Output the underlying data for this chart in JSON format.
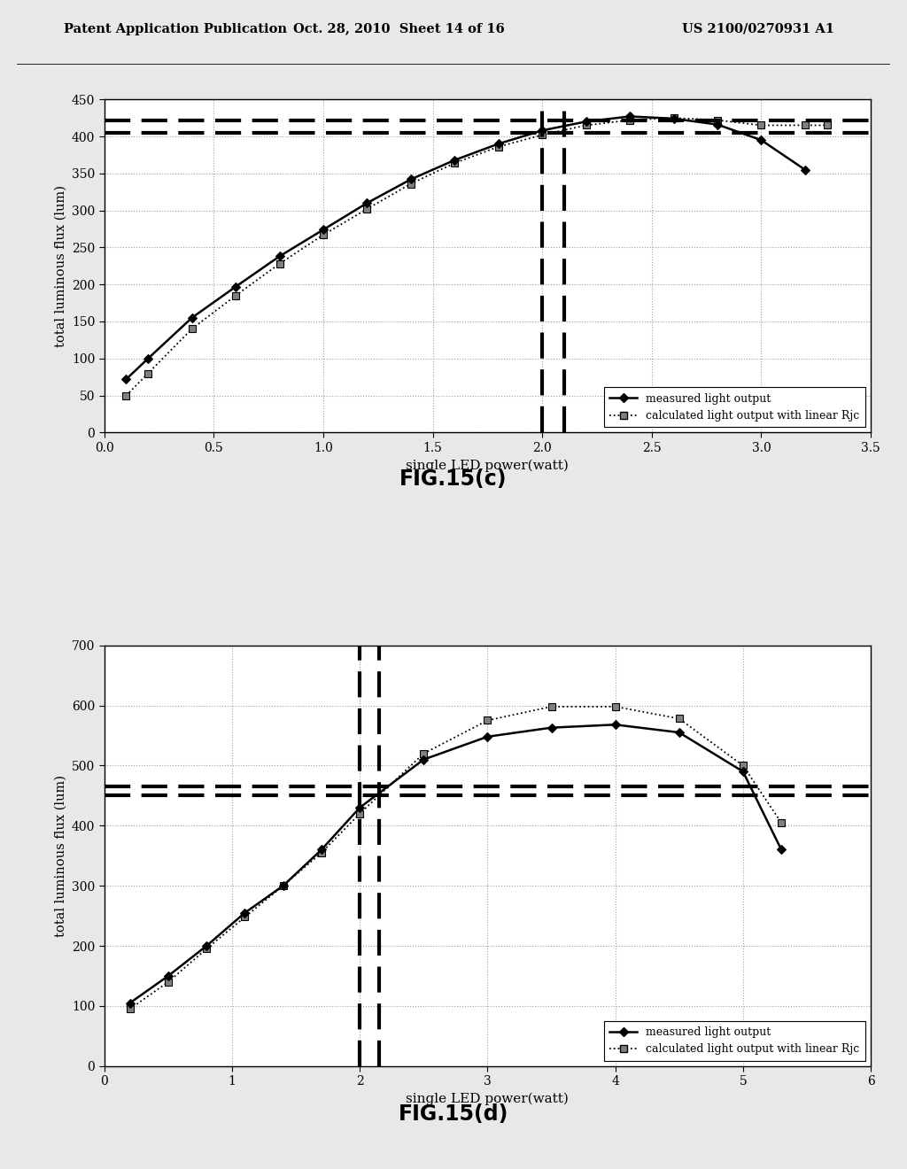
{
  "chart_c": {
    "title": "FIG.15(c)",
    "xlabel": "single LED power(watt)",
    "ylabel": "total luminous flux (lum)",
    "xlim": [
      0,
      3.5
    ],
    "ylim": [
      0,
      450
    ],
    "xticks": [
      0,
      0.5,
      1.0,
      1.5,
      2.0,
      2.5,
      3.0,
      3.5
    ],
    "yticks": [
      0,
      50,
      100,
      150,
      200,
      250,
      300,
      350,
      400,
      450
    ],
    "measured_x": [
      0.1,
      0.2,
      0.4,
      0.6,
      0.8,
      1.0,
      1.2,
      1.4,
      1.6,
      1.8,
      2.0,
      2.2,
      2.4,
      2.6,
      2.8,
      3.0,
      3.2
    ],
    "measured_y": [
      72,
      100,
      155,
      197,
      238,
      274,
      310,
      342,
      368,
      390,
      408,
      420,
      427,
      424,
      416,
      395,
      355
    ],
    "calc_x": [
      0.1,
      0.2,
      0.4,
      0.6,
      0.8,
      1.0,
      1.2,
      1.4,
      1.6,
      1.8,
      2.0,
      2.2,
      2.4,
      2.6,
      2.8,
      3.0,
      3.2,
      3.3
    ],
    "calc_y": [
      50,
      80,
      140,
      185,
      228,
      267,
      302,
      336,
      364,
      386,
      402,
      415,
      422,
      425,
      422,
      415,
      415,
      415
    ],
    "hline1_y": 422,
    "hline2_y": 405,
    "vline1_x": 2.0,
    "vline2_x": 2.1,
    "legend_measured": "measured light output",
    "legend_calc": "calculated light output with linear Rjc"
  },
  "chart_d": {
    "title": "FIG.15(d)",
    "xlabel": "single LED power(watt)",
    "ylabel": "total luminous flux (lum)",
    "xlim": [
      0,
      6
    ],
    "ylim": [
      0,
      700
    ],
    "xticks": [
      0,
      1,
      2,
      3,
      4,
      5,
      6
    ],
    "yticks": [
      0,
      100,
      200,
      300,
      400,
      500,
      600,
      700
    ],
    "measured_x": [
      0.2,
      0.5,
      0.8,
      1.1,
      1.4,
      1.7,
      2.0,
      2.5,
      3.0,
      3.5,
      4.0,
      4.5,
      5.0,
      5.3
    ],
    "measured_y": [
      105,
      150,
      200,
      255,
      300,
      360,
      430,
      510,
      548,
      563,
      568,
      555,
      490,
      360
    ],
    "calc_x": [
      0.2,
      0.5,
      0.8,
      1.1,
      1.4,
      1.7,
      2.0,
      2.5,
      3.0,
      3.5,
      4.0,
      4.5,
      5.0,
      5.3
    ],
    "calc_y": [
      95,
      140,
      195,
      248,
      300,
      355,
      420,
      520,
      575,
      598,
      598,
      578,
      500,
      405
    ],
    "hline1_y": 465,
    "hline2_y": 450,
    "vline1_x": 2.0,
    "vline2_x": 2.15,
    "legend_measured": "measured light output",
    "legend_calc": "calculated light output with linear Rjc"
  },
  "header_left": "Patent Application Publication",
  "header_mid": "Oct. 28, 2010  Sheet 14 of 16",
  "header_right": "US 2100/0270931 A1",
  "background_color": "#f0f0f0",
  "plot_bg": "#ffffff",
  "text_color": "#000000"
}
